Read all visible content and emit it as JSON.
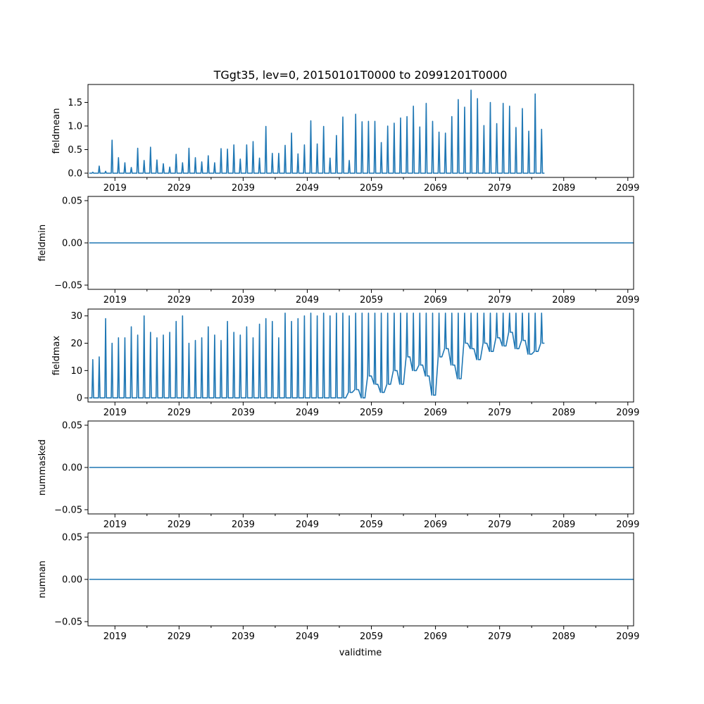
{
  "figure": {
    "title": "TGgt35, lev=0, 20150101T0000 to 20991201T0000",
    "xlabel": "validtime",
    "line_color": "#1f77b4"
  },
  "chart_data": [
    {
      "type": "line",
      "name": "fieldmean-panel",
      "ylabel": "fieldmean",
      "xlim": [
        2014.8,
        2099.9
      ],
      "ylim": [
        -0.09,
        1.88
      ],
      "x_ticks": [
        "2019",
        "2029",
        "2039",
        "2049",
        "2059",
        "2069",
        "2079",
        "2089",
        "2099"
      ],
      "x_tick_values": [
        2019,
        2029,
        2039,
        2049,
        2059,
        2069,
        2079,
        2089,
        2099
      ],
      "y_ticks": [
        "0.0",
        "0.5",
        "1.0",
        "1.5"
      ],
      "y_tick_values": [
        0.0,
        0.5,
        1.0,
        1.5
      ],
      "series": [
        {
          "name": "fieldmean",
          "x_start": 2015.0,
          "x_step": 1,
          "peak_values": [
            0.02,
            0.15,
            0.04,
            0.7,
            0.33,
            0.22,
            0.12,
            0.53,
            0.27,
            0.55,
            0.28,
            0.2,
            0.13,
            0.4,
            0.22,
            0.53,
            0.33,
            0.24,
            0.37,
            0.22,
            0.52,
            0.51,
            0.6,
            0.3,
            0.6,
            0.67,
            0.32,
            0.99,
            0.42,
            0.42,
            0.59,
            0.85,
            0.41,
            0.6,
            1.11,
            0.62,
            0.99,
            0.32,
            0.8,
            1.19,
            0.27,
            1.25,
            1.09,
            1.1,
            1.1,
            0.65,
            1.0,
            1.06,
            1.17,
            1.2,
            1.42,
            0.98,
            1.48,
            1.1,
            0.87,
            0.85,
            1.2,
            1.56,
            1.4,
            1.76,
            1.58,
            1.01,
            1.5,
            1.05,
            1.48,
            1.42,
            0.97,
            1.37,
            0.89,
            1.68,
            0.93
          ],
          "min_value": 0.0
        }
      ]
    },
    {
      "type": "line",
      "name": "fieldmin-panel",
      "ylabel": "fieldmin",
      "xlim": [
        2014.8,
        2099.9
      ],
      "ylim": [
        -0.055,
        0.055
      ],
      "x_ticks": [
        "2019",
        "2029",
        "2039",
        "2049",
        "2059",
        "2069",
        "2079",
        "2089",
        "2099"
      ],
      "x_tick_values": [
        2019,
        2029,
        2039,
        2049,
        2059,
        2069,
        2079,
        2089,
        2099
      ],
      "y_ticks": [
        "−0.05",
        "0.00",
        "0.05"
      ],
      "y_tick_values": [
        -0.05,
        0.0,
        0.05
      ],
      "series": [
        {
          "name": "fieldmin",
          "x": [
            2015.0,
            2099.9
          ],
          "values": [
            0.0,
            0.0
          ]
        }
      ]
    },
    {
      "type": "line",
      "name": "fieldmax-panel",
      "ylabel": "fieldmax",
      "xlim": [
        2014.8,
        2099.9
      ],
      "ylim": [
        -1.5,
        32.5
      ],
      "x_ticks": [
        "2019",
        "2029",
        "2039",
        "2049",
        "2059",
        "2069",
        "2079",
        "2089",
        "2099"
      ],
      "x_tick_values": [
        2019,
        2029,
        2039,
        2049,
        2059,
        2069,
        2079,
        2089,
        2099
      ],
      "y_ticks": [
        "0",
        "10",
        "20",
        "30"
      ],
      "y_tick_values": [
        0,
        10,
        20,
        30
      ],
      "series": [
        {
          "name": "fieldmax",
          "x_start": 2015.0,
          "x_step": 1,
          "peak_values": [
            14,
            15,
            29,
            20,
            22,
            22,
            26,
            23,
            30,
            24,
            22,
            23,
            24,
            28,
            30,
            20,
            21,
            22,
            26,
            23,
            21,
            28,
            24,
            23,
            26,
            22,
            27,
            29,
            28,
            22,
            31,
            28,
            29,
            30,
            31,
            30,
            31,
            30,
            31,
            31,
            30,
            31,
            31,
            31,
            31,
            31,
            31,
            31,
            31,
            31,
            31,
            31,
            31,
            31,
            31,
            31,
            31,
            31,
            31,
            31,
            31,
            31,
            31,
            31,
            31,
            31,
            31,
            31,
            31,
            31,
            31
          ],
          "trough_values": [
            0,
            0,
            0,
            0,
            0,
            0,
            0,
            0,
            0,
            0,
            0,
            0,
            0,
            0,
            0,
            0,
            0,
            0,
            0,
            0,
            0,
            0,
            0,
            0,
            0,
            0,
            0,
            0,
            0,
            0,
            0,
            0,
            0,
            0,
            0,
            0,
            0,
            0,
            0,
            0,
            2,
            3,
            0,
            8,
            5,
            2,
            5,
            10,
            5,
            15,
            10,
            12,
            8,
            1,
            15,
            18,
            12,
            7,
            20,
            18,
            14,
            20,
            17,
            22,
            19,
            24,
            18,
            21,
            16,
            17,
            20
          ]
        }
      ]
    },
    {
      "type": "line",
      "name": "nummasked-panel",
      "ylabel": "nummasked",
      "xlim": [
        2014.8,
        2099.9
      ],
      "ylim": [
        -0.055,
        0.055
      ],
      "x_ticks": [
        "2019",
        "2029",
        "2039",
        "2049",
        "2059",
        "2069",
        "2079",
        "2089",
        "2099"
      ],
      "x_tick_values": [
        2019,
        2029,
        2039,
        2049,
        2059,
        2069,
        2079,
        2089,
        2099
      ],
      "y_ticks": [
        "−0.05",
        "0.00",
        "0.05"
      ],
      "y_tick_values": [
        -0.05,
        0.0,
        0.05
      ],
      "series": [
        {
          "name": "nummasked",
          "x": [
            2015.0,
            2099.9
          ],
          "values": [
            0.0,
            0.0
          ]
        }
      ]
    },
    {
      "type": "line",
      "name": "numnan-panel",
      "ylabel": "numnan",
      "xlim": [
        2014.8,
        2099.9
      ],
      "ylim": [
        -0.055,
        0.055
      ],
      "x_ticks": [
        "2019",
        "2029",
        "2039",
        "2049",
        "2059",
        "2069",
        "2079",
        "2089",
        "2099"
      ],
      "x_tick_values": [
        2019,
        2029,
        2039,
        2049,
        2059,
        2069,
        2079,
        2089,
        2099
      ],
      "y_ticks": [
        "−0.05",
        "0.00",
        "0.05"
      ],
      "y_tick_values": [
        -0.05,
        0.0,
        0.05
      ],
      "series": [
        {
          "name": "numnan",
          "x": [
            2015.0,
            2099.9
          ],
          "values": [
            0.0,
            0.0
          ]
        }
      ]
    }
  ]
}
